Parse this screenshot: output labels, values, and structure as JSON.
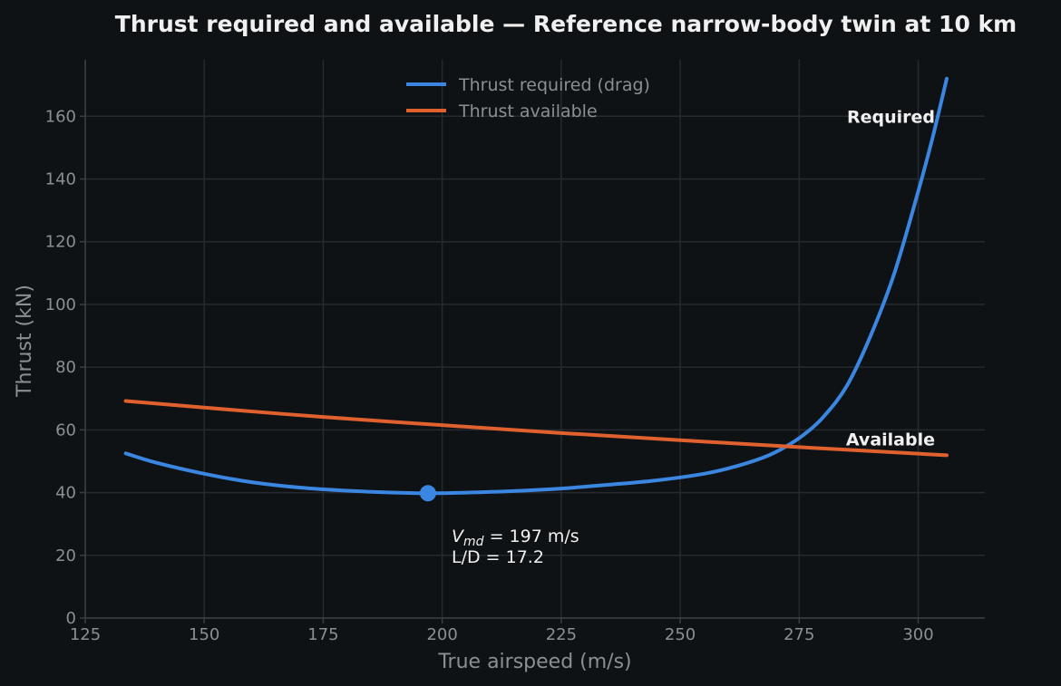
{
  "chart_data": {
    "type": "line",
    "title": "Thrust required and available — Reference narrow-body twin at 10 km",
    "xlabel": "True airspeed (m/s)",
    "ylabel": "Thrust (kN)",
    "xlim": [
      125,
      314
    ],
    "ylim": [
      0,
      178
    ],
    "xticks": [
      125,
      150,
      175,
      200,
      225,
      250,
      275,
      300
    ],
    "yticks": [
      0,
      20,
      40,
      60,
      80,
      100,
      120,
      140,
      160
    ],
    "grid": true,
    "legend_position": "upper-center",
    "series": [
      {
        "name": "Thrust required (drag)",
        "color": "#3a86e0",
        "end_label": "Required",
        "x": [
          133.5,
          140,
          150,
          160,
          170,
          180,
          190,
          197,
          205,
          215,
          225,
          235,
          245,
          255,
          262,
          268,
          272,
          276,
          280,
          285,
          290,
          295,
          300,
          303,
          306
        ],
        "y": [
          52.5,
          49.5,
          46,
          43.3,
          41.6,
          40.6,
          40.0,
          39.8,
          40.0,
          40.5,
          41.3,
          42.5,
          43.9,
          46.0,
          48.5,
          51.5,
          54.5,
          58.5,
          64,
          74,
          90,
          110,
          136,
          153,
          172
        ]
      },
      {
        "name": "Thrust available",
        "color": "#e0612e",
        "end_label": "Available",
        "x": [
          133.5,
          150,
          175,
          200,
          225,
          250,
          275,
          300,
          306
        ],
        "y": [
          69.2,
          67.1,
          64.1,
          61.5,
          59.0,
          56.7,
          54.5,
          52.4,
          51.9
        ]
      }
    ],
    "marker": {
      "x": 197,
      "y": 39.8,
      "color": "#3a86e0",
      "label_line1": "= 197 m/s",
      "label_var": "V",
      "label_sub": "md",
      "label_line2": "L/D = 17.2"
    }
  }
}
